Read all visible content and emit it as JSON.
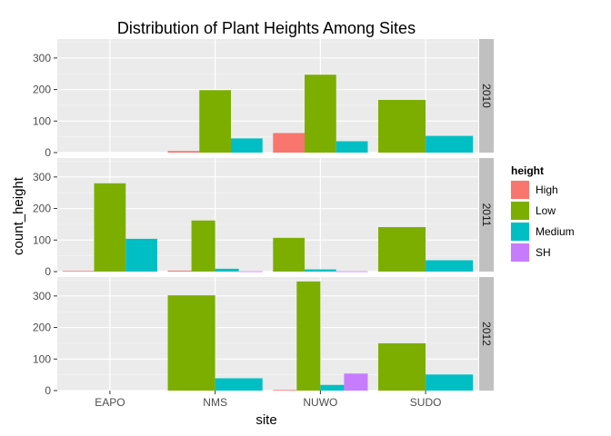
{
  "chart_data": {
    "type": "bar",
    "title": "Distribution of Plant Heights Among Sites",
    "xlabel": "site",
    "ylabel": "count_height",
    "categories": [
      "EAPO",
      "NMS",
      "NUWO",
      "SUDO"
    ],
    "ylim": [
      0,
      360
    ],
    "yticks": [
      0,
      100,
      200,
      300
    ],
    "grid": true,
    "facet_labels": [
      "2010",
      "2011",
      "2012"
    ],
    "legend": {
      "title": "height",
      "position": "right",
      "entries": [
        {
          "label": "High",
          "color": "#F8766D"
        },
        {
          "label": "Low",
          "color": "#7CAE00"
        },
        {
          "label": "Medium",
          "color": "#00BFC4"
        },
        {
          "label": "SH",
          "color": "#C77CFF"
        }
      ]
    },
    "panels": [
      {
        "facet": "2010",
        "bars": {
          "EAPO": [],
          "NMS": [
            {
              "height": "High",
              "value": 5
            },
            {
              "height": "Low",
              "value": 198
            },
            {
              "height": "Medium",
              "value": 45
            }
          ],
          "NUWO": [
            {
              "height": "High",
              "value": 62
            },
            {
              "height": "Low",
              "value": 247
            },
            {
              "height": "Medium",
              "value": 36
            }
          ],
          "SUDO": [
            {
              "height": "Low",
              "value": 167
            },
            {
              "height": "Medium",
              "value": 53
            }
          ]
        }
      },
      {
        "facet": "2011",
        "bars": {
          "EAPO": [
            {
              "height": "High",
              "value": 2
            },
            {
              "height": "Low",
              "value": 280
            },
            {
              "height": "Medium",
              "value": 104
            }
          ],
          "NMS": [
            {
              "height": "High",
              "value": 3
            },
            {
              "height": "Low",
              "value": 162
            },
            {
              "height": "Medium",
              "value": 9
            },
            {
              "height": "SH",
              "value": 1
            }
          ],
          "NUWO": [
            {
              "height": "Low",
              "value": 107
            },
            {
              "height": "Medium",
              "value": 7
            },
            {
              "height": "SH",
              "value": 1
            }
          ],
          "SUDO": [
            {
              "height": "Low",
              "value": 141
            },
            {
              "height": "Medium",
              "value": 36
            }
          ]
        }
      },
      {
        "facet": "2012",
        "bars": {
          "EAPO": [],
          "NMS": [
            {
              "height": "Low",
              "value": 302
            },
            {
              "height": "Medium",
              "value": 39
            }
          ],
          "NUWO": [
            {
              "height": "High",
              "value": 2
            },
            {
              "height": "Low",
              "value": 346
            },
            {
              "height": "Medium",
              "value": 18
            },
            {
              "height": "SH",
              "value": 54
            }
          ],
          "SUDO": [
            {
              "height": "Low",
              "value": 150
            },
            {
              "height": "Medium",
              "value": 51
            }
          ]
        }
      }
    ]
  }
}
